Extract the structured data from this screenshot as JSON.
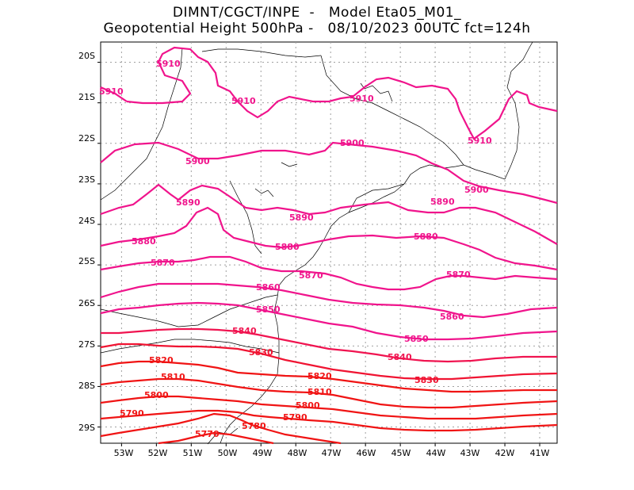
{
  "header": {
    "line1": "DIMNT/CGCT/INPE  -   Model Eta05_M01_",
    "line2": "Geopotential Height 500hPa -   08/10/2023 00UTC fct=124h"
  },
  "map": {
    "lon_range": [
      -53.6,
      -40.5
    ],
    "lat_range": [
      -29.4,
      -19.5
    ],
    "lat_ticks": [
      "20S",
      "21S",
      "22S",
      "23S",
      "24S",
      "25S",
      "26S",
      "27S",
      "28S",
      "29S"
    ],
    "lon_ticks": [
      "53W",
      "52W",
      "51W",
      "50W",
      "49W",
      "48W",
      "47W",
      "46W",
      "45W",
      "44W",
      "43W",
      "42W",
      "41W"
    ],
    "contour_labels": [
      "5910",
      "5900",
      "5890",
      "5880",
      "5870",
      "5860",
      "5850",
      "5840",
      "5830",
      "5820",
      "5810",
      "5800",
      "5790",
      "5780",
      "5770"
    ],
    "colors": {
      "high": "#f0148c",
      "low": "#f01414",
      "grid": "#a0a0a0",
      "coast": "#000000"
    }
  }
}
